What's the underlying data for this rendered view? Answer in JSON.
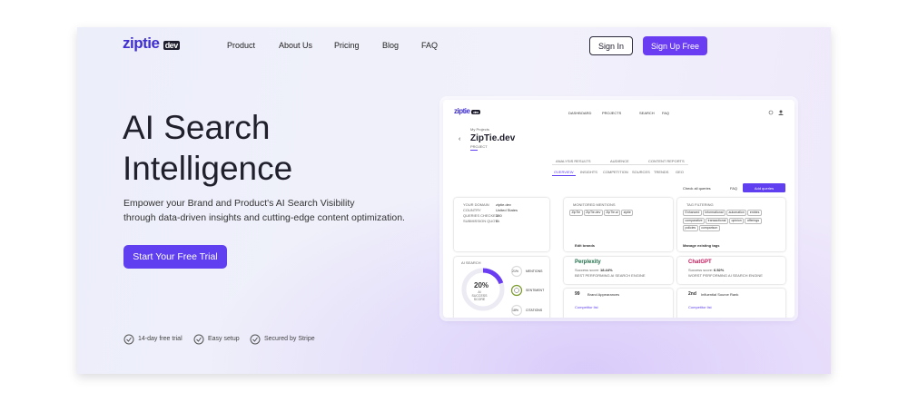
{
  "nav": {
    "logo": "ziptie",
    "logo_badge": "dev",
    "links": [
      "Product",
      "About Us",
      "Pricing",
      "Blog",
      "FAQ"
    ],
    "sign_in": "Sign In",
    "sign_up": "Sign Up Free"
  },
  "hero": {
    "title_lines": [
      "AI Search",
      "Intelligence"
    ],
    "subtitle_lines": [
      "Empower your Brand and Product's AI Search Visibility",
      "through data-driven insights and cutting-edge content optimization."
    ],
    "cta": "Start Your Free Trial",
    "features": [
      "14-day free trial",
      "Easy setup",
      "Secured by Stripe"
    ]
  },
  "dashboard": {
    "logo": "ziptie",
    "logo_badge": "dev",
    "nav": [
      "DASHBOARD",
      "PROJECTS",
      "SEARCH",
      "FAQ"
    ],
    "breadcrumb": "My Projects",
    "project_name": "ZipTie.dev",
    "project_label": "PROJECT",
    "tabs": [
      "ANALYSIS RESULTS",
      "AUDIENCE",
      "CONTENT REPORTS"
    ],
    "subtabs": [
      "OVERVIEW",
      "INSIGHTS",
      "COMPETITION",
      "SOURCES",
      "TRENDS",
      "GEO"
    ],
    "check_all": "Check all queries",
    "faq": "FAQ",
    "add_queries": "Add queries",
    "domain_card": {
      "rows": [
        [
          "YOUR DOMAIN",
          "ziptie.dev"
        ],
        [
          "COUNTRY",
          "United States"
        ],
        [
          "QUERIES CHECKED",
          "150"
        ],
        [
          "SUBMISSION QUOTA",
          "0"
        ]
      ]
    },
    "mentions_card": {
      "title": "MONITORED MENTIONS",
      "chips": [
        "ZipTie",
        "ZipTie.dev",
        "ZipTie.ai",
        "ziptie"
      ],
      "action": "Edit brands"
    },
    "tags_card": {
      "title": "TAG FILTERING",
      "chips": [
        "Enhanced",
        "Informational",
        "automation",
        "entries",
        "comparative",
        "transactional",
        "opinion",
        "offerings",
        "policies",
        "comparison"
      ],
      "action": "Manage existing tags"
    },
    "score_card": {
      "title": "AI SEARCH",
      "score": "20%",
      "score_label": "AI SUCCESS SCORE",
      "metrics": [
        {
          "value": "21%",
          "label": "MENTIONS"
        },
        {
          "label": "SENTIMENT"
        },
        {
          "value": "18%",
          "label": "CITATIONS"
        }
      ]
    },
    "best_engine": {
      "name": "Perplexity",
      "score_label": "Success score:",
      "score": "18.44%",
      "caption": "BEST PERFORMING AI SEARCH ENGINE"
    },
    "worst_engine": {
      "name": "ChatGPT",
      "score_label": "Success score:",
      "score": "6.52%",
      "caption": "WORST PERFORMING AI SEARCH ENGINE"
    },
    "appearances": {
      "value": "99",
      "label": "Brand Appearances",
      "link": "Competitor list"
    },
    "source_rank": {
      "value": "2nd",
      "label": "Influential Source Rank",
      "link": "Competitor list"
    }
  }
}
